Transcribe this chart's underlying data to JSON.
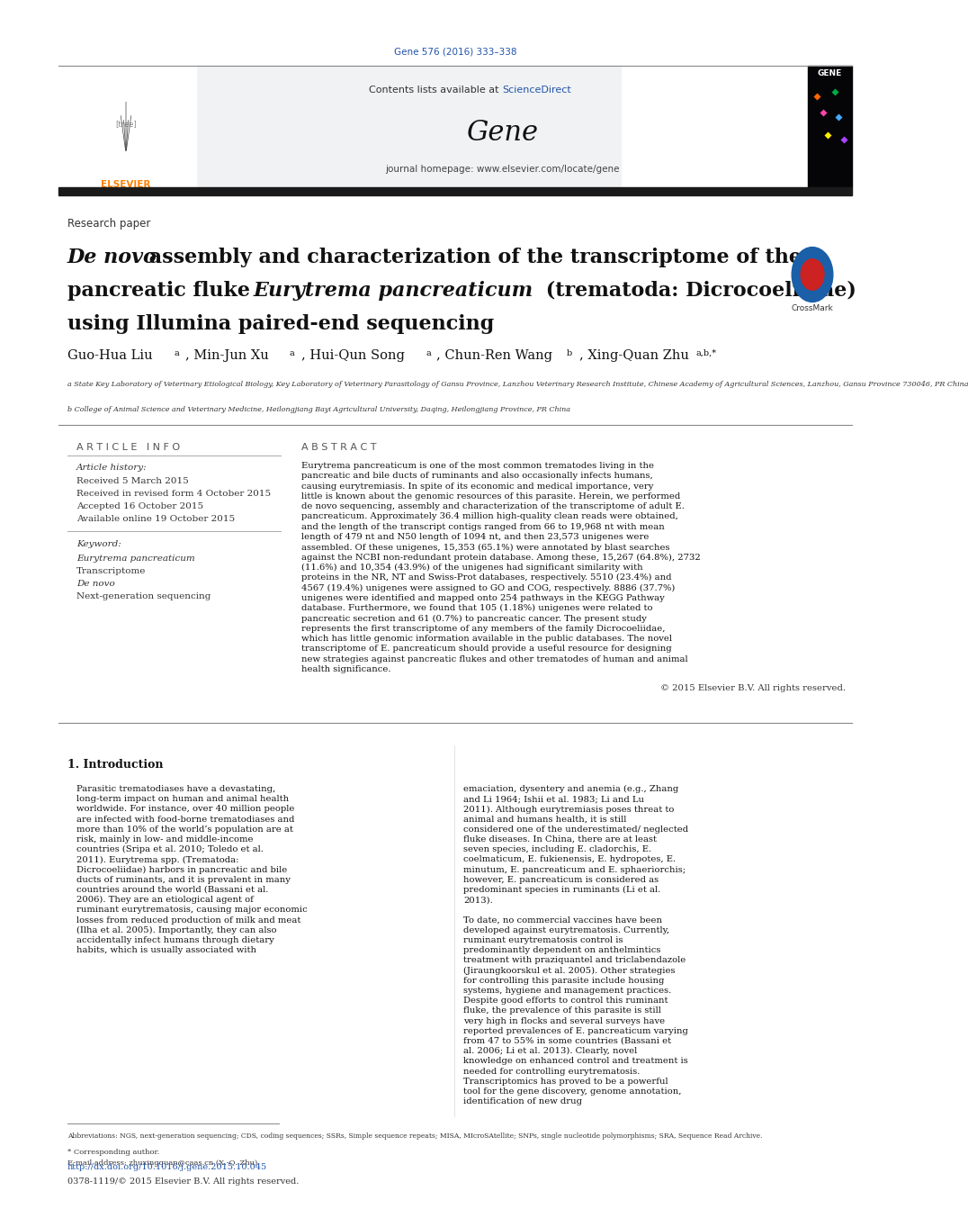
{
  "page_width": 9.92,
  "page_height": 13.23,
  "background_color": "#ffffff",
  "journal_ref": "Gene 576 (2016) 333–338",
  "journal_ref_color": "#2255aa",
  "sciencedirect_color": "#2255aa",
  "journal_homepage": "journal homepage: www.elsevier.com/locate/gene",
  "thick_bar_color": "#1a1a1a",
  "section_label": "Research paper",
  "article_info_header": "A R T I C L E   I N F O",
  "abstract_header": "A B S T R A C T",
  "article_history_label": "Article history:",
  "received": "Received 5 March 2015",
  "revised": "Received in revised form 4 October 2015",
  "accepted": "Accepted 16 October 2015",
  "available": "Available online 19 October 2015",
  "keywords_label": "Keyword:",
  "kw1": "Eurytrema pancreaticum",
  "kw2": "Transcriptome",
  "kw3": "De novo",
  "kw4": "Next-generation sequencing",
  "abstract_text": "Eurytrema pancreaticum is one of the most common trematodes living in the pancreatic and bile ducts of ruminants and also occasionally infects humans, causing eurytremiasis. In spite of its economic and medical importance, very little is known about the genomic resources of this parasite. Herein, we performed de novo sequencing, assembly and characterization of the transcriptome of adult E. pancreaticum. Approximately 36.4 million high-quality clean reads were obtained, and the length of the transcript contigs ranged from 66 to 19,968 nt with mean length of 479 nt and N50 length of 1094 nt, and then 23,573 unigenes were assembled. Of these unigenes, 15,353 (65.1%) were annotated by blast searches against the NCBI non-redundant protein database. Among these, 15,267 (64.8%), 2732 (11.6%) and 10,354 (43.9%) of the unigenes had significant similarity with proteins in the NR, NT and Swiss-Prot databases, respectively. 5510 (23.4%) and 4567 (19.4%) unigenes were assigned to GO and COG, respectively. 8886 (37.7%) unigenes were identified and mapped onto 254 pathways in the KEGG Pathway database. Furthermore, we found that 105 (1.18%) unigenes were related to pancreatic secretion and 61 (0.7%) to pancreatic cancer. The present study represents the first transcriptome of any members of the family Dicrocoeliidae, which has little genomic information available in the public databases. The novel transcriptome of E. pancreaticum should provide a useful resource for designing new strategies against pancreatic flukes and other trematodes of human and animal health significance.",
  "copyright": "© 2015 Elsevier B.V. All rights reserved.",
  "affil_a": "a State Key Laboratory of Veterinary Etiological Biology, Key Laboratory of Veterinary Parasitology of Gansu Province, Lanzhou Veterinary Research Institute, Chinese Academy of Agricultural Sciences, Lanzhou, Gansu Province 730046, PR China",
  "affil_b": "b College of Animal Science and Veterinary Medicine, Heilongjiang Bayi Agricultural University, Daqing, Heilongjiang Province, PR China",
  "intro_header": "1. Introduction",
  "intro_text1": "Parasitic trematodiases have a devastating, long-term impact on human and animal health worldwide. For instance, over 40 million people are infected with food-borne trematodiases and more than 10% of the world’s population are at risk, mainly in low- and middle-income countries (Sripa et al. 2010; Toledo et al. 2011). Eurytrema spp. (Trematoda: Dicrocoeliidae) harbors in pancreatic and bile ducts of ruminants, and it is prevalent in many countries around the world (Bassani et al. 2006). They are an etiological agent of ruminant eurytrematosis, causing major economic losses from reduced production of milk and meat (Ilha et al. 2005). Importantly, they can also accidentally infect humans through dietary habits, which is usually associated with",
  "intro_text2": "emaciation, dysentery and anemia (e.g., Zhang and Li 1964; Ishii et al. 1983; Li and Lu 2011). Although eurytremiasis poses threat to animal and humans health, it is still considered one of the underestimated/ neglected fluke diseases. In China, there are at least seven species, including E. cladorchis, E. coelmaticum, E. fukienensis, E. hydropotes, E. minutum, E. pancreaticum and E. sphaeriorchis; however, E. pancreaticum is considered as predominant species in ruminants (Li et al. 2013).",
  "intro_text2b": "To date, no commercial vaccines have been developed against eurytrematosis. Currently, ruminant eurytrematosis control is predominantly dependent on anthelmintics treatment with praziquantel and triclabendazole (Jiraungkoorskul et al. 2005). Other strategies for controlling this parasite include housing systems, hygiene and management practices. Despite good efforts to control this ruminant fluke, the prevalence of this parasite is still very high in flocks and several surveys have reported prevalences of E. pancreaticum varying from 47 to 55% in some countries (Bassani et al. 2006; Li et al. 2013). Clearly, novel knowledge on enhanced control and treatment is needed for controlling eurytrematosis. Transcriptomics has proved to be a powerful tool for the gene discovery, genome annotation, identification of new drug",
  "footnote_abbrev": "Abbreviations: NGS, next-generation sequencing; CDS, coding sequences; SSRs, Simple sequence repeats; MISA, MIcroSAtellite; SNPs, single nucleotide polymorphisms; SRA, Sequence Read Archive.",
  "footnote_corr": "* Corresponding author.",
  "footnote_email": "E-mail address: zhuxingquan@caas.cn (X.-Q. Zhu).",
  "doi_text": "http://dx.doi.org/10.1016/j.gene.2015.10.045",
  "doi_color": "#2255aa",
  "issn_text": "0378-1119/© 2015 Elsevier B.V. All rights reserved.",
  "grey_bg": "#f0f2f4",
  "diamond_colors": [
    "#ff6600",
    "#00aa44",
    "#ff44aa",
    "#44aaff",
    "#ffee00",
    "#aa44ff"
  ],
  "crossmark_color": "#1a5fa8"
}
